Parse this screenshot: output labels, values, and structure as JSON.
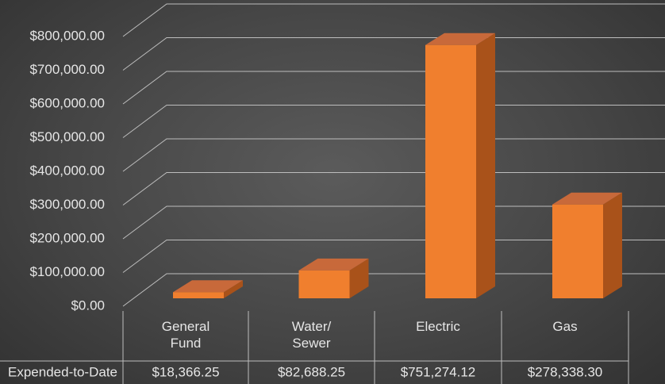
{
  "chart_data": {
    "type": "bar3d",
    "categories": [
      "General Fund",
      "Water/ Sewer",
      "Electric",
      "Gas"
    ],
    "series": [
      {
        "name": "Expended-to-Date",
        "color": "#f07f2e",
        "values": [
          18366.25,
          82688.25,
          751274.12,
          278338.3
        ],
        "value_labels": [
          "$18,366.25",
          "$82,688.25",
          "$751,274.12",
          "$278,338.30"
        ]
      }
    ],
    "ylim": [
      0,
      800000
    ],
    "yticks": [
      {
        "value": 0,
        "label": "$0.00"
      },
      {
        "value": 100000,
        "label": "$100,000.00"
      },
      {
        "value": 200000,
        "label": "$200,000.00"
      },
      {
        "value": 300000,
        "label": "$300,000.00"
      },
      {
        "value": 400000,
        "label": "$400,000.00"
      },
      {
        "value": 500000,
        "label": "$500,000.00"
      },
      {
        "value": 600000,
        "label": "$600,000.00"
      },
      {
        "value": 700000,
        "label": "$700,000.00"
      },
      {
        "value": 800000,
        "label": "$800,000.00"
      }
    ],
    "grid": true,
    "data_table": true
  }
}
